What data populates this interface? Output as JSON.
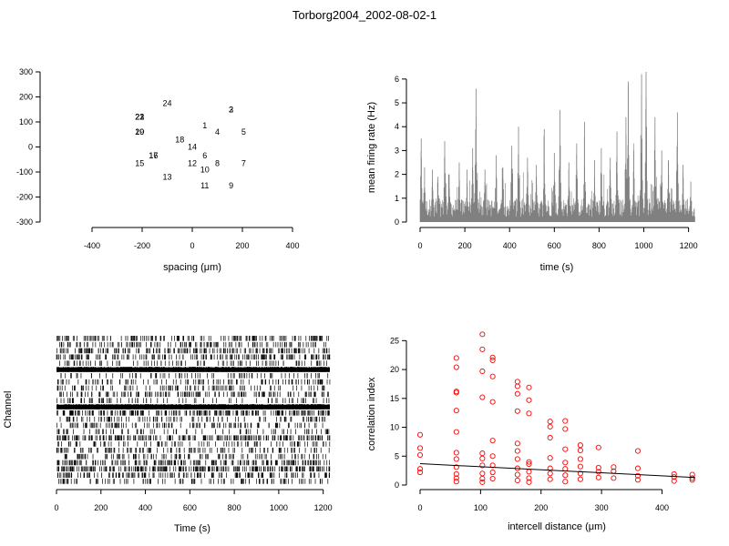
{
  "title": "Torborg2004_2002-08-02-1",
  "chart_data": [
    {
      "type": "scatter",
      "name": "electrode-layout",
      "xlabel": "spacing (μm)",
      "ylabel": "",
      "xlim": [
        -400,
        400
      ],
      "ylim": [
        -300,
        300
      ],
      "xticks": [
        -400,
        -200,
        0,
        200,
        400
      ],
      "yticks": [
        -300,
        -200,
        -100,
        0,
        100,
        200,
        300
      ],
      "points": [
        {
          "label": "1",
          "x": 50,
          "y": 85
        },
        {
          "label": "2",
          "x": 155,
          "y": 150
        },
        {
          "label": "3",
          "x": 155,
          "y": 150
        },
        {
          "label": "4",
          "x": 100,
          "y": 60
        },
        {
          "label": "5",
          "x": 205,
          "y": 60
        },
        {
          "label": "6",
          "x": 50,
          "y": -35
        },
        {
          "label": "7",
          "x": 205,
          "y": -65
        },
        {
          "label": "8",
          "x": 100,
          "y": -65
        },
        {
          "label": "9",
          "x": 155,
          "y": -155
        },
        {
          "label": "10",
          "x": 50,
          "y": -90
        },
        {
          "label": "11",
          "x": 50,
          "y": -155
        },
        {
          "label": "12",
          "x": 0,
          "y": -65
        },
        {
          "label": "13",
          "x": -100,
          "y": -120
        },
        {
          "label": "14",
          "x": 0,
          "y": 0
        },
        {
          "label": "15",
          "x": -210,
          "y": -65
        },
        {
          "label": "16",
          "x": -155,
          "y": -35
        },
        {
          "label": "17",
          "x": -155,
          "y": -35
        },
        {
          "label": "18",
          "x": -50,
          "y": 30
        },
        {
          "label": "19",
          "x": -210,
          "y": 60
        },
        {
          "label": "20",
          "x": -210,
          "y": 60
        },
        {
          "label": "21",
          "x": -210,
          "y": 120
        },
        {
          "label": "22",
          "x": -210,
          "y": 120
        },
        {
          "label": "23",
          "x": -210,
          "y": 120
        },
        {
          "label": "24",
          "x": -100,
          "y": 175
        }
      ]
    },
    {
      "type": "bar",
      "name": "mean-firing-rate",
      "xlabel": "time (s)",
      "ylabel": "mean firing rate (Hz)",
      "xlim": [
        0,
        1230
      ],
      "ylim": [
        0,
        6.3
      ],
      "xticks": [
        0,
        200,
        400,
        600,
        800,
        1000,
        1200
      ],
      "yticks": [
        0,
        1,
        2,
        3,
        4,
        5,
        6
      ],
      "color": "#808080",
      "baseline_level": 0.55,
      "peaks": [
        {
          "t": 5,
          "v": 3.5
        },
        {
          "t": 20,
          "v": 2.3
        },
        {
          "t": 55,
          "v": 2.2
        },
        {
          "t": 80,
          "v": 1.9
        },
        {
          "t": 110,
          "v": 3.4
        },
        {
          "t": 130,
          "v": 2.0
        },
        {
          "t": 175,
          "v": 2.5
        },
        {
          "t": 210,
          "v": 2.2
        },
        {
          "t": 235,
          "v": 3.1
        },
        {
          "t": 250,
          "v": 5.6
        },
        {
          "t": 290,
          "v": 2.2
        },
        {
          "t": 340,
          "v": 2.8
        },
        {
          "t": 370,
          "v": 2.3
        },
        {
          "t": 410,
          "v": 3.2
        },
        {
          "t": 440,
          "v": 4.0
        },
        {
          "t": 480,
          "v": 2.7
        },
        {
          "t": 520,
          "v": 2.4
        },
        {
          "t": 555,
          "v": 3.9
        },
        {
          "t": 600,
          "v": 2.9
        },
        {
          "t": 625,
          "v": 4.7
        },
        {
          "t": 665,
          "v": 2.5
        },
        {
          "t": 700,
          "v": 3.3
        },
        {
          "t": 735,
          "v": 4.2
        },
        {
          "t": 780,
          "v": 2.6
        },
        {
          "t": 810,
          "v": 3.1
        },
        {
          "t": 850,
          "v": 2.7
        },
        {
          "t": 880,
          "v": 3.8
        },
        {
          "t": 920,
          "v": 4.4
        },
        {
          "t": 930,
          "v": 5.9
        },
        {
          "t": 955,
          "v": 3.0
        },
        {
          "t": 990,
          "v": 6.2
        },
        {
          "t": 1010,
          "v": 6.3
        },
        {
          "t": 1050,
          "v": 4.4
        },
        {
          "t": 1080,
          "v": 3.0
        },
        {
          "t": 1110,
          "v": 2.6
        },
        {
          "t": 1150,
          "v": 4.6
        },
        {
          "t": 1175,
          "v": 2.4
        },
        {
          "t": 1210,
          "v": 1.7
        }
      ]
    },
    {
      "type": "raster",
      "name": "spike-raster",
      "xlabel": "Time (s)",
      "ylabel": "Channel",
      "xlim": [
        0,
        1230
      ],
      "xticks": [
        0,
        200,
        400,
        600,
        800,
        1000,
        1200
      ],
      "channels": 24,
      "channel_density": [
        0.45,
        0.35,
        0.55,
        0.5,
        0.2,
        0.95,
        0.15,
        0.3,
        0.25,
        0.4,
        0.15,
        1.0,
        0.75,
        0.25,
        0.3,
        0.15,
        0.7,
        0.2,
        0.3,
        0.3,
        0.6,
        0.8,
        0.45,
        0.25
      ]
    },
    {
      "type": "scatter",
      "name": "correlation-vs-distance",
      "xlabel": "intercell distance (μm)",
      "ylabel": "correlation index",
      "xlim": [
        0,
        455
      ],
      "ylim": [
        0,
        26
      ],
      "xticks": [
        0,
        100,
        200,
        300,
        400
      ],
      "yticks": [
        0,
        5,
        10,
        15,
        20,
        25
      ],
      "color": "#ff0000",
      "fit_line": {
        "x": [
          0,
          455
        ],
        "y": [
          3.7,
          1.3
        ]
      },
      "points": [
        [
          0,
          8.7
        ],
        [
          0,
          6.4
        ],
        [
          0,
          5.2
        ],
        [
          0,
          2.8
        ],
        [
          0,
          2.2
        ],
        [
          60,
          22
        ],
        [
          60,
          20.4
        ],
        [
          60,
          16.2
        ],
        [
          60,
          16
        ],
        [
          60,
          12.9
        ],
        [
          60,
          9.2
        ],
        [
          60,
          5.6
        ],
        [
          60,
          4.5
        ],
        [
          60,
          3.1
        ],
        [
          60,
          1.9
        ],
        [
          60,
          1.2
        ],
        [
          60,
          0.6
        ],
        [
          103,
          26.1
        ],
        [
          103,
          23.5
        ],
        [
          103,
          19.7
        ],
        [
          103,
          15.2
        ],
        [
          103,
          5.5
        ],
        [
          103,
          4.6
        ],
        [
          103,
          3.4
        ],
        [
          103,
          2.0
        ],
        [
          103,
          1.1
        ],
        [
          103,
          0.5
        ],
        [
          120,
          22.1
        ],
        [
          120,
          21.6
        ],
        [
          120,
          18.8
        ],
        [
          120,
          14.4
        ],
        [
          120,
          7.7
        ],
        [
          120,
          5.0
        ],
        [
          120,
          3.4
        ],
        [
          120,
          2.2
        ],
        [
          120,
          1.1
        ],
        [
          161,
          17.9
        ],
        [
          161,
          17.1
        ],
        [
          161,
          15.8
        ],
        [
          161,
          12.8
        ],
        [
          161,
          7.2
        ],
        [
          161,
          5.9
        ],
        [
          161,
          4.5
        ],
        [
          161,
          2.9
        ],
        [
          161,
          1.8
        ],
        [
          161,
          0.8
        ],
        [
          180,
          16.9
        ],
        [
          180,
          14.7
        ],
        [
          180,
          12.4
        ],
        [
          180,
          4.0
        ],
        [
          180,
          3.6
        ],
        [
          180,
          2.3
        ],
        [
          180,
          1.2
        ],
        [
          180,
          0.5
        ],
        [
          215,
          11.0
        ],
        [
          215,
          10.1
        ],
        [
          215,
          8.2
        ],
        [
          215,
          4.7
        ],
        [
          215,
          2.9
        ],
        [
          215,
          2.0
        ],
        [
          215,
          1.0
        ],
        [
          240,
          11.1
        ],
        [
          240,
          9.7
        ],
        [
          240,
          6.2
        ],
        [
          240,
          3.9
        ],
        [
          240,
          2.8
        ],
        [
          240,
          1.7
        ],
        [
          240,
          0.6
        ],
        [
          265,
          6.9
        ],
        [
          265,
          6.0
        ],
        [
          265,
          4.5
        ],
        [
          265,
          3.2
        ],
        [
          265,
          2.0
        ],
        [
          265,
          1.0
        ],
        [
          295,
          6.5
        ],
        [
          295,
          3.0
        ],
        [
          295,
          2.3
        ],
        [
          295,
          1.3
        ],
        [
          320,
          3.1
        ],
        [
          320,
          2.4
        ],
        [
          320,
          1.2
        ],
        [
          360,
          5.9
        ],
        [
          360,
          2.9
        ],
        [
          360,
          1.6
        ],
        [
          360,
          0.9
        ],
        [
          420,
          1.9
        ],
        [
          420,
          1.4
        ],
        [
          420,
          0.7
        ],
        [
          450,
          1.8
        ],
        [
          450,
          1.2
        ],
        [
          450,
          0.9
        ]
      ]
    }
  ]
}
